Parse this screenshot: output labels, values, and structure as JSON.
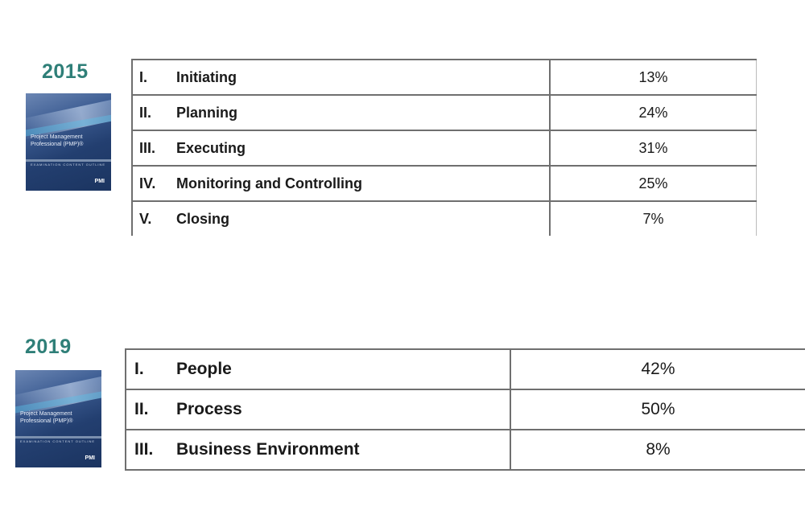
{
  "outline_2015": {
    "year": "2015",
    "cover": {
      "title": "Project Management Professional (PMP)®",
      "subtitle": "EXAMINATION CONTENT OUTLINE",
      "logo": "PMI"
    },
    "rows": [
      {
        "num": "I.",
        "label": "Initiating",
        "pct": "13%"
      },
      {
        "num": "II.",
        "label": "Planning",
        "pct": "24%"
      },
      {
        "num": "III.",
        "label": "Executing",
        "pct": "31%"
      },
      {
        "num": "IV.",
        "label": "Monitoring and Controlling",
        "pct": "25%"
      },
      {
        "num": "V.",
        "label": "Closing",
        "pct": "7%"
      }
    ]
  },
  "outline_2019": {
    "year": "2019",
    "cover": {
      "title": "Project Management Professional (PMP)®",
      "subtitle": "EXAMINATION CONTENT OUTLINE",
      "logo": "PMI"
    },
    "rows": [
      {
        "num": "I.",
        "label": "People",
        "pct": "42%"
      },
      {
        "num": "II.",
        "label": "Process",
        "pct": "50%"
      },
      {
        "num": "III.",
        "label": "Business Environment",
        "pct": "8%"
      }
    ]
  },
  "colors": {
    "year_text": "#2f7f78",
    "cover_dark": "#1b3460",
    "grid": "#6f6f6f"
  }
}
